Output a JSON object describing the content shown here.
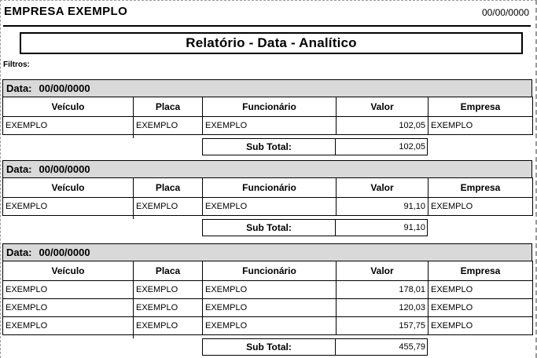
{
  "report": {
    "company": "EMPRESA EXEMPLO",
    "header_date": "00/00/0000",
    "title": "Relatório - Data - Analítico",
    "filters_label": "Filtros:",
    "columns": [
      "Veículo",
      "Placa",
      "Funcionário",
      "Valor",
      "Empresa"
    ],
    "subtotal_label": "Sub Total:",
    "sections": [
      {
        "date_label": "Data:",
        "date": "00/00/0000",
        "rows": [
          {
            "veiculo": "EXEMPLO",
            "placa": "EXEMPLO",
            "funcionario": "EXEMPLO",
            "valor": "102,05",
            "empresa": "EXEMPLO"
          }
        ],
        "subtotal": "102,05"
      },
      {
        "date_label": "Data:",
        "date": "00/00/0000",
        "rows": [
          {
            "veiculo": "EXEMPLO",
            "placa": "EXEMPLO",
            "funcionario": "EXEMPLO",
            "valor": "91,10",
            "empresa": "EXEMPLO"
          }
        ],
        "subtotal": "91,10"
      },
      {
        "date_label": "Data:",
        "date": "00/00/0000",
        "rows": [
          {
            "veiculo": "EXEMPLO",
            "placa": "EXEMPLO",
            "funcionario": "EXEMPLO",
            "valor": "178,01",
            "empresa": "EXEMPLO"
          },
          {
            "veiculo": "EXEMPLO",
            "placa": "EXEMPLO",
            "funcionario": "EXEMPLO",
            "valor": "120,03",
            "empresa": "EXEMPLO"
          },
          {
            "veiculo": "EXEMPLO",
            "placa": "EXEMPLO",
            "funcionario": "EXEMPLO",
            "valor": "157,75",
            "empresa": "EXEMPLO"
          }
        ],
        "subtotal": "455,79"
      }
    ]
  },
  "colors": {
    "section_bar_bg": "#d9d9d9",
    "rule_and_borders": "#000000",
    "page_dashed_border": "#9a9a9a",
    "background": "#ffffff",
    "text": "#000000"
  }
}
